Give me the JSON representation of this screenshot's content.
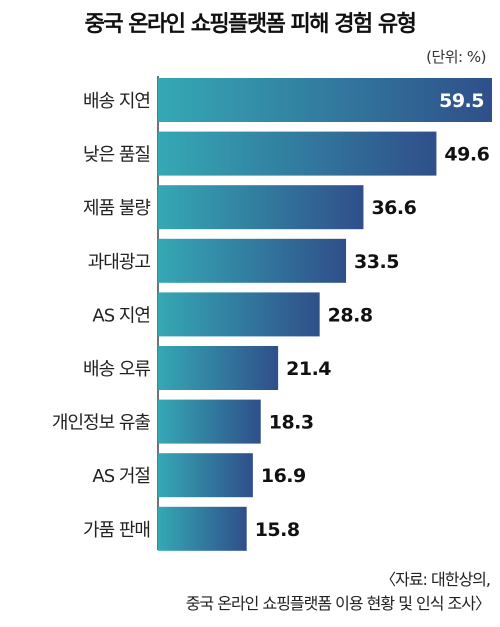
{
  "chart_data": {
    "type": "bar",
    "orientation": "horizontal",
    "title": "중국 온라인 쇼핑플랫폼 피해 경험 유형",
    "unit": "(단위: %)",
    "categories": [
      "배송 지연",
      "낮은 품질",
      "제품 불량",
      "과대광고",
      "AS 지연",
      "배송 오류",
      "개인정보 유출",
      "AS 거절",
      "가품 판매"
    ],
    "values": [
      59.5,
      49.6,
      36.6,
      33.5,
      28.8,
      21.4,
      18.3,
      16.9,
      15.8
    ],
    "value_labels": [
      "59.5",
      "49.6",
      "36.6",
      "33.5",
      "28.8",
      "21.4",
      "18.3",
      "16.9",
      "15.8"
    ],
    "xlim": [
      0,
      59.5
    ],
    "grid": false,
    "colors": {
      "bar_start": "#35a8b4",
      "bar_end": "#2f4f8a"
    }
  },
  "source": {
    "line1": "〈자료: 대한상의,",
    "line2": "중국 온라인 쇼핑플랫폼 이용 현황 및 인식 조사〉"
  }
}
